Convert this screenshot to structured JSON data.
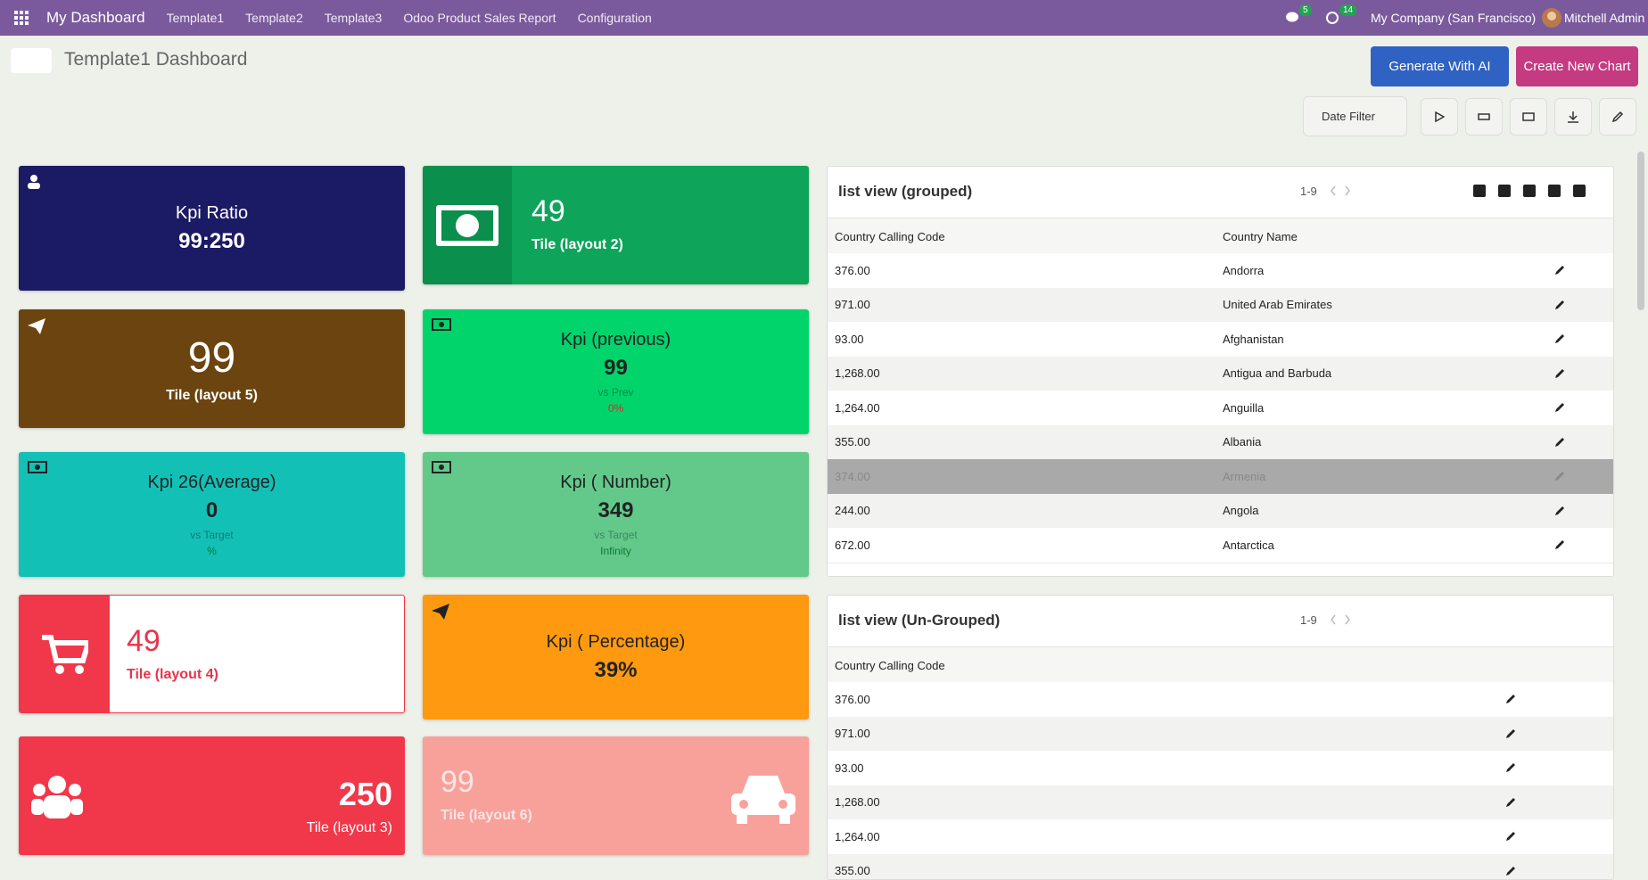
{
  "navbar": {
    "brand": "My Dashboard",
    "menu": [
      "Template1",
      "Template2",
      "Template3",
      "Odoo Product Sales Report",
      "Configuration"
    ],
    "messages_badge": "5",
    "activities_badge": "14",
    "company": "My Company (San Francisco)",
    "user": "Mitchell Admin"
  },
  "header": {
    "title": "Template1 Dashboard",
    "generate_button": "Generate With AI",
    "create_button": "Create New Chart",
    "date_filter": "Date Filter"
  },
  "tiles": [
    {
      "title": "Kpi Ratio",
      "value": "99:250"
    },
    {
      "value": "49",
      "subtitle": "Tile (layout 2)"
    },
    {
      "value": "99",
      "subtitle": "Tile (layout 5)"
    },
    {
      "title": "Kpi (previous)",
      "value": "99",
      "comparison": "vs Prev",
      "change": "0%"
    },
    {
      "title": "Kpi 26(Average)",
      "value": "0",
      "comparison": "vs Target",
      "change": "%"
    },
    {
      "title": "Kpi ( Number)",
      "value": "349",
      "comparison": "vs Target",
      "change": "Infinity"
    },
    {
      "value": "49",
      "subtitle": "Tile (layout 4)"
    },
    {
      "title": "Kpi ( Percentage)",
      "value": "39%"
    },
    {
      "value": "250",
      "subtitle": "Tile (layout 3)"
    },
    {
      "value": "99",
      "subtitle": "Tile (layout 6)"
    }
  ],
  "lists": [
    {
      "title": "list view (grouped)",
      "pager": "1-9",
      "columns": [
        "Country Calling Code",
        "Country Name"
      ],
      "rows": [
        [
          "376.00",
          "Andorra"
        ],
        [
          "971.00",
          "United Arab Emirates"
        ],
        [
          "93.00",
          "Afghanistan"
        ],
        [
          "1,268.00",
          "Antigua and Barbuda"
        ],
        [
          "1,264.00",
          "Anguilla"
        ],
        [
          "355.00",
          "Albania"
        ],
        [
          "374.00",
          "Armenia"
        ],
        [
          "244.00",
          "Angola"
        ],
        [
          "672.00",
          "Antarctica"
        ]
      ]
    },
    {
      "title": "list view (Un-Grouped)",
      "pager": "1-9",
      "columns": [
        "Country Calling Code"
      ],
      "rows": [
        [
          "376.00"
        ],
        [
          "971.00"
        ],
        [
          "93.00"
        ],
        [
          "1,268.00"
        ],
        [
          "1,264.00"
        ],
        [
          "355.00"
        ]
      ]
    }
  ]
}
